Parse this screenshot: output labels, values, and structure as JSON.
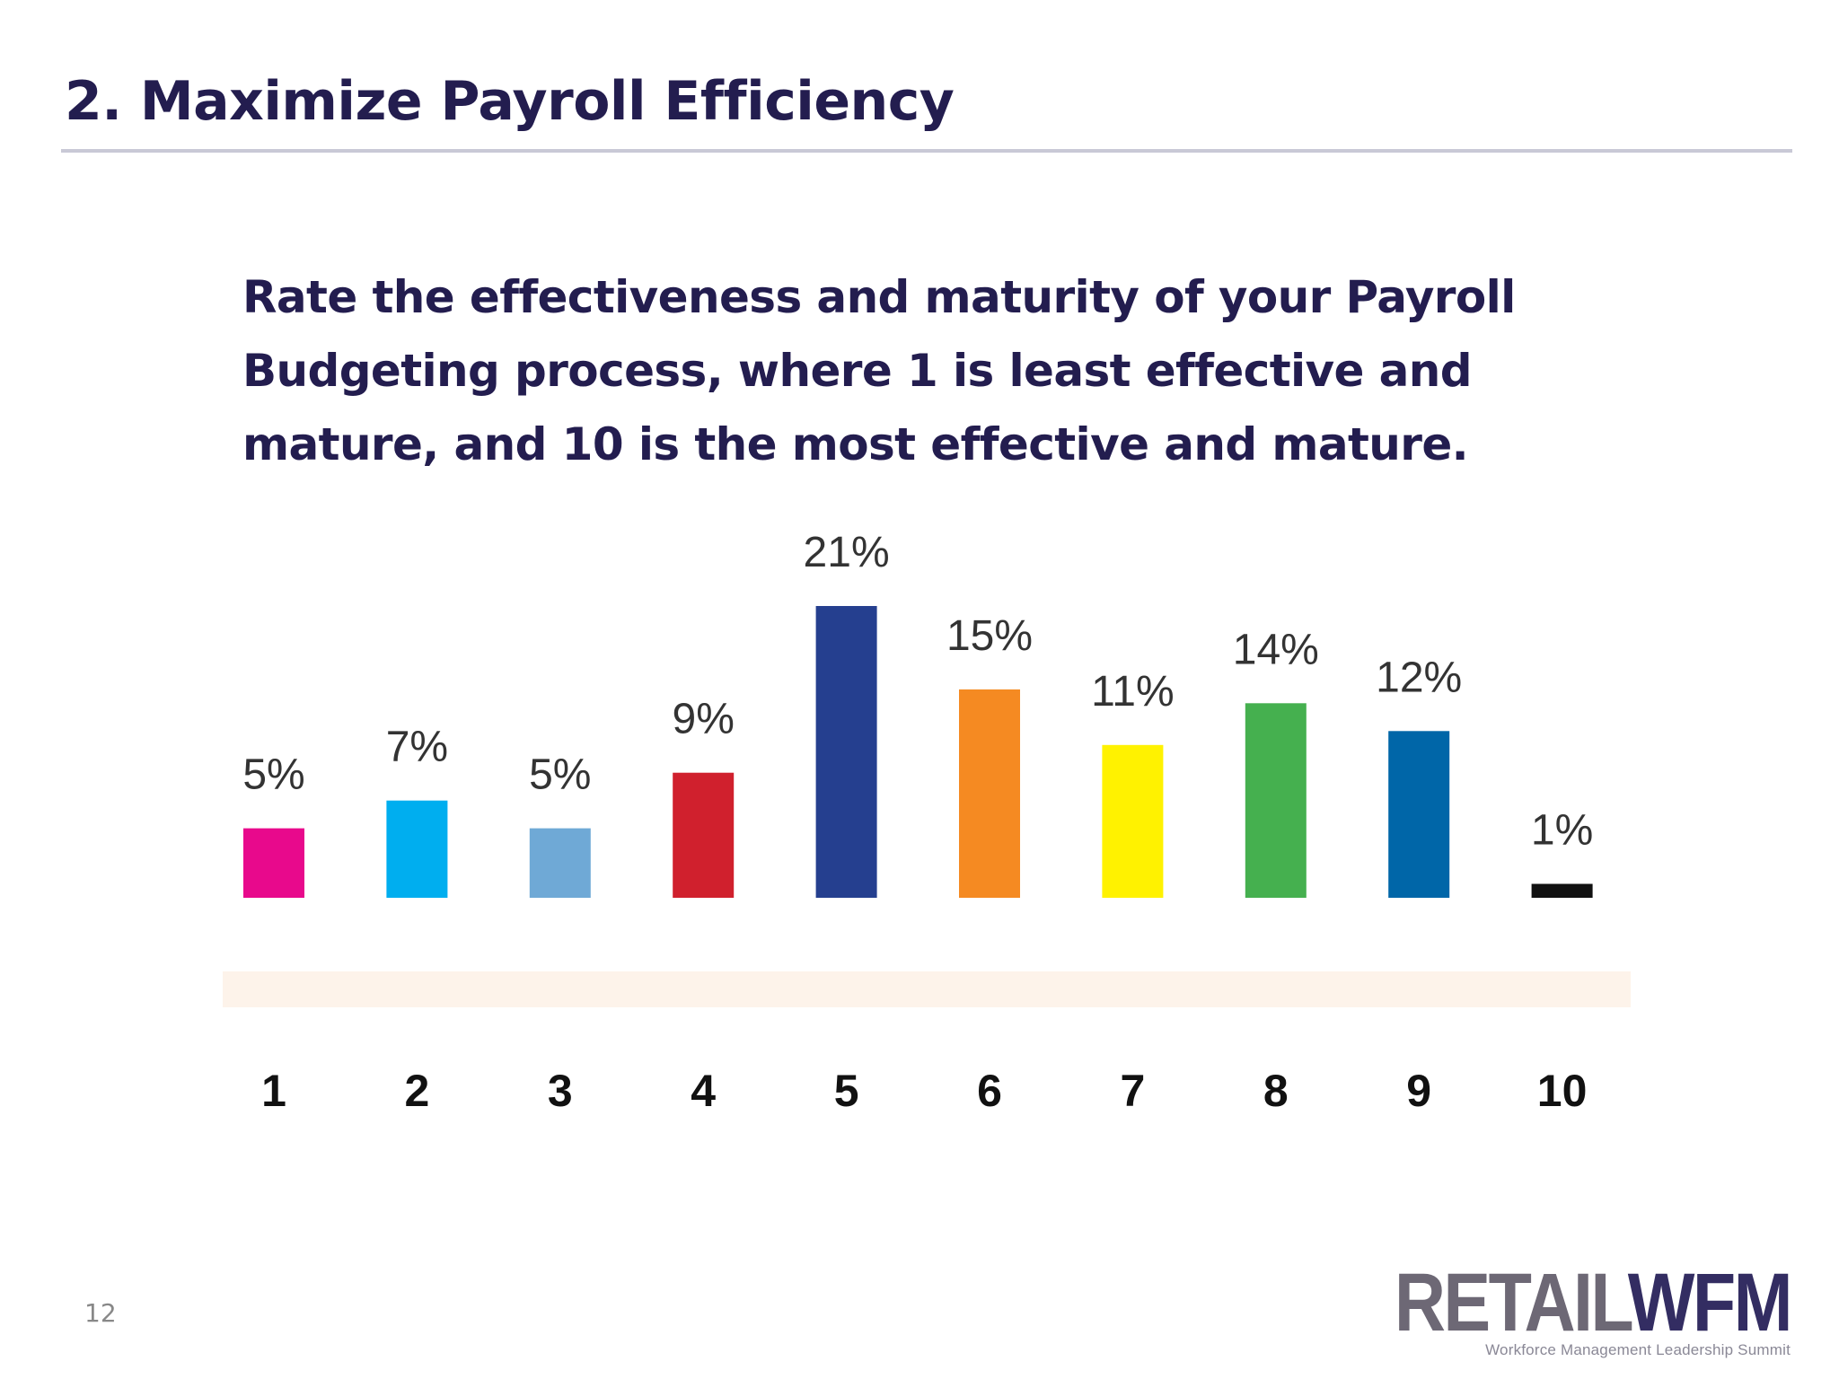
{
  "slide": {
    "title": "2. Maximize Payroll Efficiency",
    "question": "Rate the effectiveness and maturity of your Payroll Budgeting process, where 1 is least effective and mature, and 10 is the most effective and mature.",
    "page_number": "12"
  },
  "logo": {
    "part1": "RETAIL",
    "part2": "WFM",
    "tagline": "Workforce Management Leadership Summit"
  },
  "chart_data": {
    "type": "bar",
    "categories": [
      "1",
      "2",
      "3",
      "4",
      "5",
      "6",
      "7",
      "8",
      "9",
      "10"
    ],
    "values": [
      5,
      7,
      5,
      9,
      21,
      15,
      11,
      14,
      12,
      1
    ],
    "value_labels": [
      "5%",
      "7%",
      "5%",
      "9%",
      "21%",
      "15%",
      "11%",
      "14%",
      "12%",
      "1%"
    ],
    "unit": "%",
    "colors": [
      "#e8098c",
      "#00aeef",
      "#6fa9d6",
      "#d0202d",
      "#253f8f",
      "#f58a22",
      "#fff200",
      "#45b04f",
      "#0066a8",
      "#111111"
    ],
    "title": "",
    "xlabel": "",
    "ylabel": "",
    "ylim": [
      0,
      21
    ],
    "grid": false,
    "legend": "none"
  }
}
